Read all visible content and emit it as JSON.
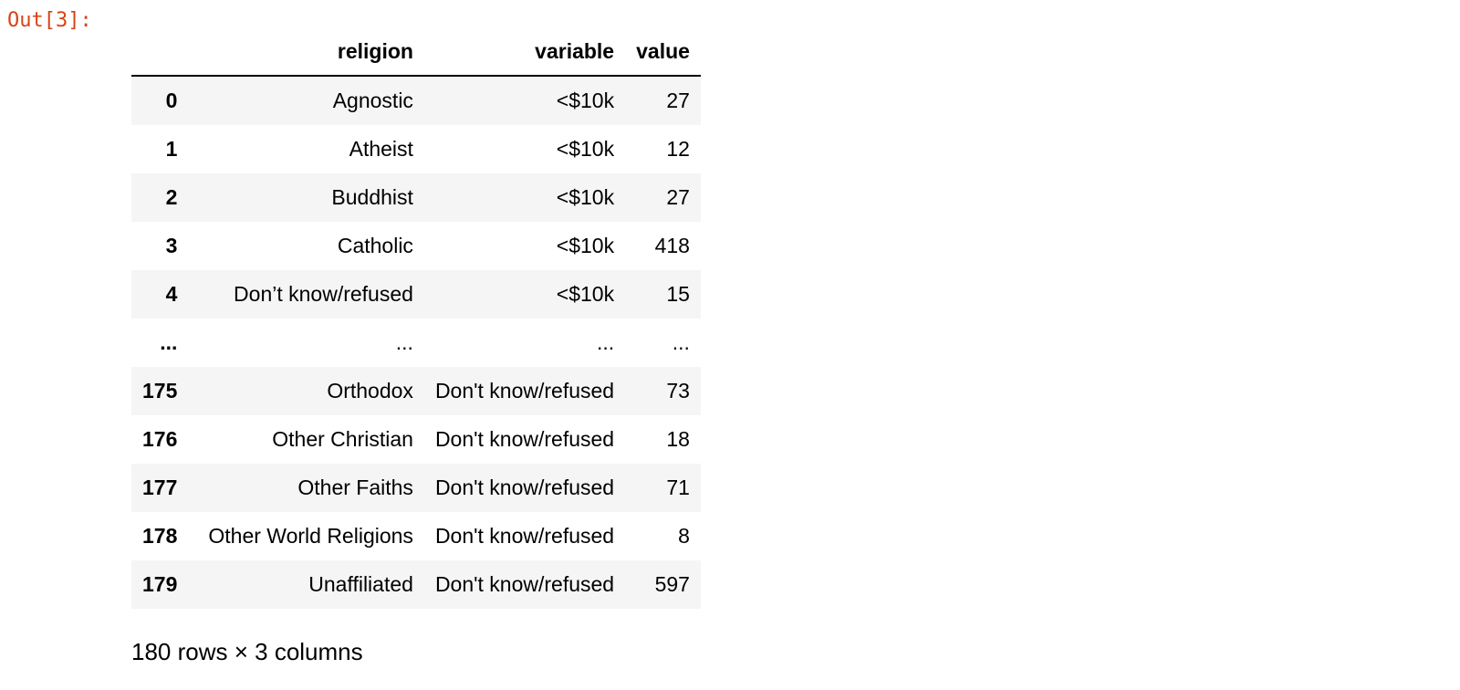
{
  "cell": {
    "out_prompt": "Out[3]:"
  },
  "dataframe": {
    "columns": [
      "religion",
      "variable",
      "value"
    ],
    "head_rows": [
      {
        "index": "0",
        "religion": "Agnostic",
        "variable": "<$10k",
        "value": "27"
      },
      {
        "index": "1",
        "religion": "Atheist",
        "variable": "<$10k",
        "value": "12"
      },
      {
        "index": "2",
        "religion": "Buddhist",
        "variable": "<$10k",
        "value": "27"
      },
      {
        "index": "3",
        "religion": "Catholic",
        "variable": "<$10k",
        "value": "418"
      },
      {
        "index": "4",
        "religion": "Don’t know/refused",
        "variable": "<$10k",
        "value": "15"
      }
    ],
    "ellipsis_row": {
      "index": "...",
      "religion": "...",
      "variable": "...",
      "value": "..."
    },
    "tail_rows": [
      {
        "index": "175",
        "religion": "Orthodox",
        "variable": "Don't know/refused",
        "value": "73"
      },
      {
        "index": "176",
        "religion": "Other Christian",
        "variable": "Don't know/refused",
        "value": "18"
      },
      {
        "index": "177",
        "religion": "Other Faiths",
        "variable": "Don't know/refused",
        "value": "71"
      },
      {
        "index": "178",
        "religion": "Other World Religions",
        "variable": "Don't know/refused",
        "value": "8"
      },
      {
        "index": "179",
        "religion": "Unaffiliated",
        "variable": "Don't know/refused",
        "value": "597"
      }
    ],
    "shape_note": "180 rows × 3 columns"
  },
  "colors": {
    "prompt": "#d84315",
    "row_stripe": "#f5f5f5",
    "header_rule": "#000000"
  }
}
